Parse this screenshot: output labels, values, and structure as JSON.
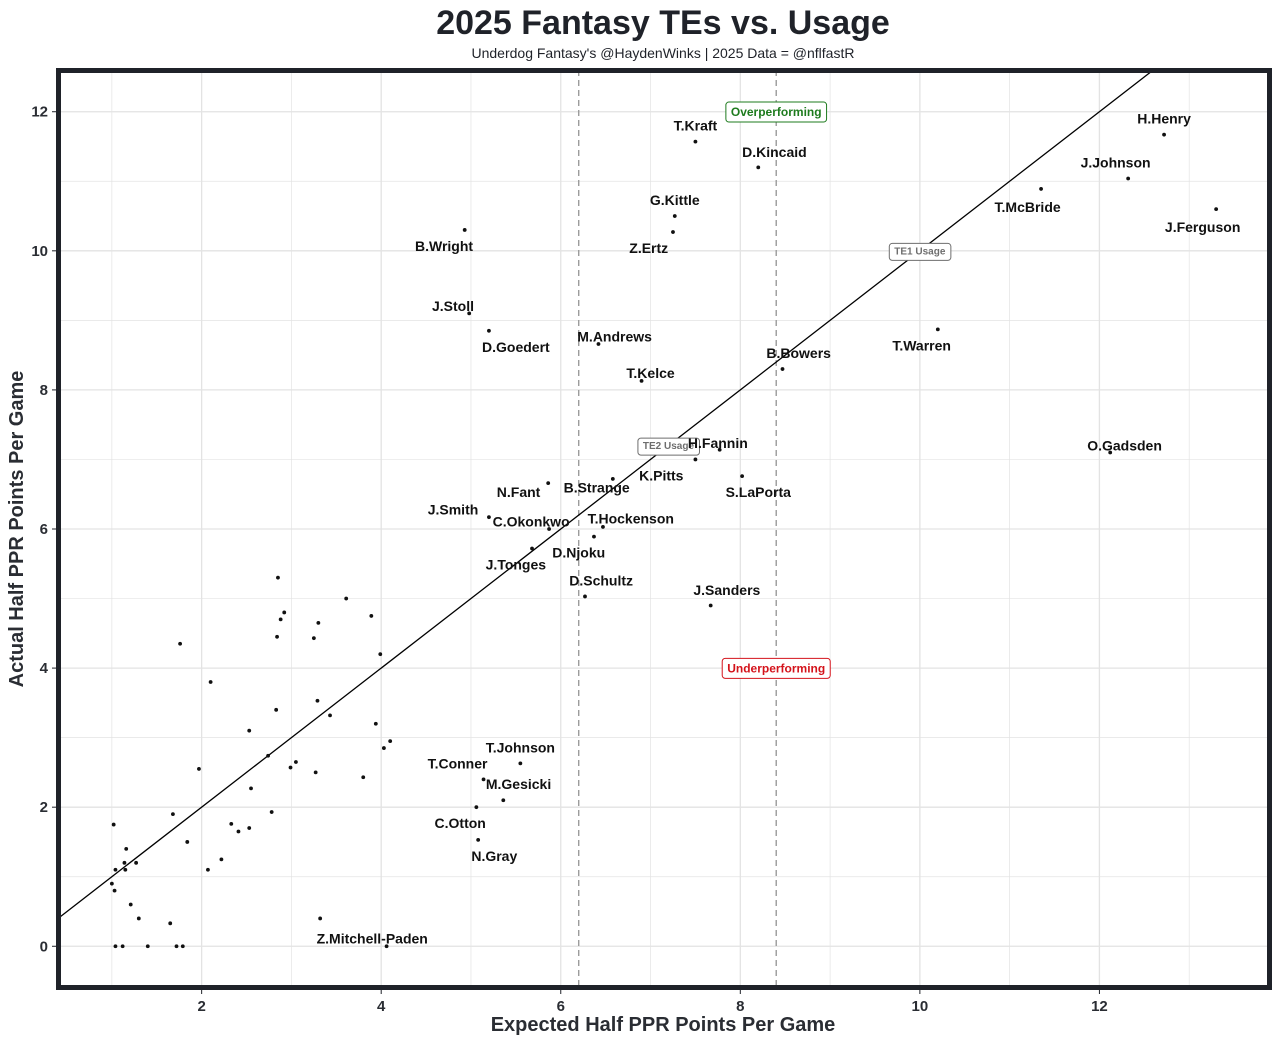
{
  "chart_data": {
    "type": "scatter",
    "title": "2025 Fantasy TEs vs. Usage",
    "subtitle": "Underdog Fantasy's @HaydenWinks | 2025 Data = @nflfastR",
    "xlabel": "Expected Half PPR Points Per Game",
    "ylabel": "Actual Half PPR Points Per Game",
    "xlim": [
      0.4,
      13.9
    ],
    "ylim": [
      -0.6,
      12.6
    ],
    "xticks": [
      2,
      4,
      6,
      8,
      10,
      12
    ],
    "yticks": [
      0,
      2,
      4,
      6,
      8,
      10,
      12
    ],
    "grid": true,
    "reference_line": {
      "type": "y = x"
    },
    "vertical_lines": [
      {
        "x": 6.2,
        "style": "dashed",
        "label": "TE2 Usage",
        "label_x": 7.2,
        "label_y": 7.2
      },
      {
        "x": 8.4,
        "style": "dashed",
        "label": "TE1 Usage",
        "label_x": 10.0,
        "label_y": 10.0
      }
    ],
    "annotations": [
      {
        "text": "Overperforming",
        "x": 8.4,
        "y": 12.0,
        "color": "#1e7b1e"
      },
      {
        "text": "Underperforming",
        "x": 8.4,
        "y": 4.0,
        "color": "#d4131b"
      }
    ],
    "labeled_points": [
      {
        "name": "T.Kraft",
        "x": 7.5,
        "y": 11.57,
        "lx": 7.5,
        "ly": 11.8
      },
      {
        "name": "D.Kincaid",
        "x": 8.2,
        "y": 11.2,
        "lx": 8.38,
        "ly": 11.42
      },
      {
        "name": "H.Henry",
        "x": 12.72,
        "y": 11.67,
        "lx": 12.72,
        "ly": 11.9
      },
      {
        "name": "J.Johnson",
        "x": 12.32,
        "y": 11.04,
        "lx": 12.18,
        "ly": 11.27
      },
      {
        "name": "T.McBride",
        "x": 11.35,
        "y": 10.89,
        "lx": 11.2,
        "ly": 10.63
      },
      {
        "name": "J.Ferguson",
        "x": 13.3,
        "y": 10.6,
        "lx": 13.15,
        "ly": 10.34
      },
      {
        "name": "G.Kittle",
        "x": 7.27,
        "y": 10.5,
        "lx": 7.27,
        "ly": 10.73
      },
      {
        "name": "Z.Ertz",
        "x": 7.25,
        "y": 10.27,
        "lx": 6.98,
        "ly": 10.04
      },
      {
        "name": "B.Wright",
        "x": 4.93,
        "y": 10.3,
        "lx": 4.7,
        "ly": 10.07
      },
      {
        "name": "J.Stoll",
        "x": 4.98,
        "y": 9.1,
        "lx": 4.8,
        "ly": 9.21
      },
      {
        "name": "D.Goedert",
        "x": 5.2,
        "y": 8.85,
        "lx": 5.5,
        "ly": 8.62
      },
      {
        "name": "M.Andrews",
        "x": 6.42,
        "y": 8.66,
        "lx": 6.6,
        "ly": 8.77
      },
      {
        "name": "T.Kelce",
        "x": 6.9,
        "y": 8.13,
        "lx": 7.0,
        "ly": 8.24
      },
      {
        "name": "T.Warren",
        "x": 10.2,
        "y": 8.87,
        "lx": 10.02,
        "ly": 8.64
      },
      {
        "name": "B.Bowers",
        "x": 8.47,
        "y": 8.3,
        "lx": 8.65,
        "ly": 8.53
      },
      {
        "name": "H.Fannin",
        "x": 7.77,
        "y": 7.14,
        "lx": 7.75,
        "ly": 7.24
      },
      {
        "name": "K.Pitts",
        "x": 7.5,
        "y": 7.0,
        "lx": 7.12,
        "ly": 6.77
      },
      {
        "name": "S.LaPorta",
        "x": 8.02,
        "y": 6.76,
        "lx": 8.2,
        "ly": 6.53
      },
      {
        "name": "O.Gadsden",
        "x": 12.12,
        "y": 7.1,
        "lx": 12.28,
        "ly": 7.2
      },
      {
        "name": "B.Strange",
        "x": 6.58,
        "y": 6.72,
        "lx": 6.4,
        "ly": 6.6
      },
      {
        "name": "N.Fant",
        "x": 5.86,
        "y": 6.66,
        "lx": 5.53,
        "ly": 6.53
      },
      {
        "name": "J.Smith",
        "x": 5.2,
        "y": 6.17,
        "lx": 4.8,
        "ly": 6.28
      },
      {
        "name": "C.Okonkwo",
        "x": 5.87,
        "y": 6.0,
        "lx": 5.67,
        "ly": 6.11
      },
      {
        "name": "T.Hockenson",
        "x": 6.47,
        "y": 6.03,
        "lx": 6.78,
        "ly": 6.15
      },
      {
        "name": "D.Njoku",
        "x": 6.37,
        "y": 5.89,
        "lx": 6.2,
        "ly": 5.66
      },
      {
        "name": "J.Tonges",
        "x": 5.68,
        "y": 5.72,
        "lx": 5.5,
        "ly": 5.49
      },
      {
        "name": "D.Schultz",
        "x": 6.27,
        "y": 5.03,
        "lx": 6.45,
        "ly": 5.26
      },
      {
        "name": "J.Sanders",
        "x": 7.67,
        "y": 4.9,
        "lx": 7.85,
        "ly": 5.12
      },
      {
        "name": "T.Johnson",
        "x": 5.55,
        "y": 2.63,
        "lx": 5.55,
        "ly": 2.86
      },
      {
        "name": "T.Conner",
        "x": 5.14,
        "y": 2.4,
        "lx": 4.85,
        "ly": 2.63
      },
      {
        "name": "M.Gesicki",
        "x": 5.36,
        "y": 2.1,
        "lx": 5.53,
        "ly": 2.33
      },
      {
        "name": "C.Otton",
        "x": 5.06,
        "y": 2.0,
        "lx": 4.88,
        "ly": 1.77
      },
      {
        "name": "N.Gray",
        "x": 5.08,
        "y": 1.53,
        "lx": 5.26,
        "ly": 1.3
      },
      {
        "name": "Z.Mitchell-Paden",
        "x": 4.06,
        "y": 0.0,
        "lx": 3.9,
        "ly": 0.11
      }
    ],
    "unlabeled_points": [
      [
        1.02,
        1.75
      ],
      [
        1.0,
        0.9
      ],
      [
        1.04,
        1.1
      ],
      [
        1.03,
        0.8
      ],
      [
        1.16,
        1.4
      ],
      [
        1.14,
        1.2
      ],
      [
        1.15,
        1.1
      ],
      [
        1.27,
        1.2
      ],
      [
        1.21,
        0.6
      ],
      [
        1.3,
        0.4
      ],
      [
        1.04,
        0.0
      ],
      [
        1.12,
        0.0
      ],
      [
        1.4,
        0.0
      ],
      [
        1.68,
        1.9
      ],
      [
        1.65,
        0.33
      ],
      [
        1.72,
        0.0
      ],
      [
        1.79,
        0.0
      ],
      [
        1.76,
        4.35
      ],
      [
        1.84,
        1.5
      ],
      [
        1.97,
        2.55
      ],
      [
        2.07,
        1.1
      ],
      [
        2.1,
        3.8
      ],
      [
        2.22,
        1.25
      ],
      [
        2.33,
        1.76
      ],
      [
        2.41,
        1.65
      ],
      [
        2.53,
        3.1
      ],
      [
        2.53,
        1.7
      ],
      [
        2.55,
        2.27
      ],
      [
        2.74,
        2.74
      ],
      [
        2.78,
        1.93
      ],
      [
        2.83,
        3.4
      ],
      [
        2.84,
        4.45
      ],
      [
        2.85,
        5.3
      ],
      [
        2.88,
        4.7
      ],
      [
        2.92,
        4.8
      ],
      [
        2.99,
        2.57
      ],
      [
        3.05,
        2.65
      ],
      [
        3.25,
        4.43
      ],
      [
        3.27,
        2.5
      ],
      [
        3.29,
        3.53
      ],
      [
        3.3,
        4.65
      ],
      [
        3.32,
        0.4
      ],
      [
        3.43,
        3.32
      ],
      [
        3.61,
        5.0
      ],
      [
        3.8,
        2.43
      ],
      [
        3.89,
        4.75
      ],
      [
        3.94,
        3.2
      ],
      [
        3.99,
        4.2
      ],
      [
        4.03,
        2.85
      ],
      [
        4.1,
        2.95
      ]
    ]
  },
  "colors": {
    "frame": "#1f2229",
    "grid": "#e3e3e3",
    "point": "#111111",
    "reference_line": "#000000",
    "dashed_line": "#9b9b9b",
    "over": "#1e7b1e",
    "under": "#d4131b",
    "usage_label": "#6e6e6e"
  }
}
